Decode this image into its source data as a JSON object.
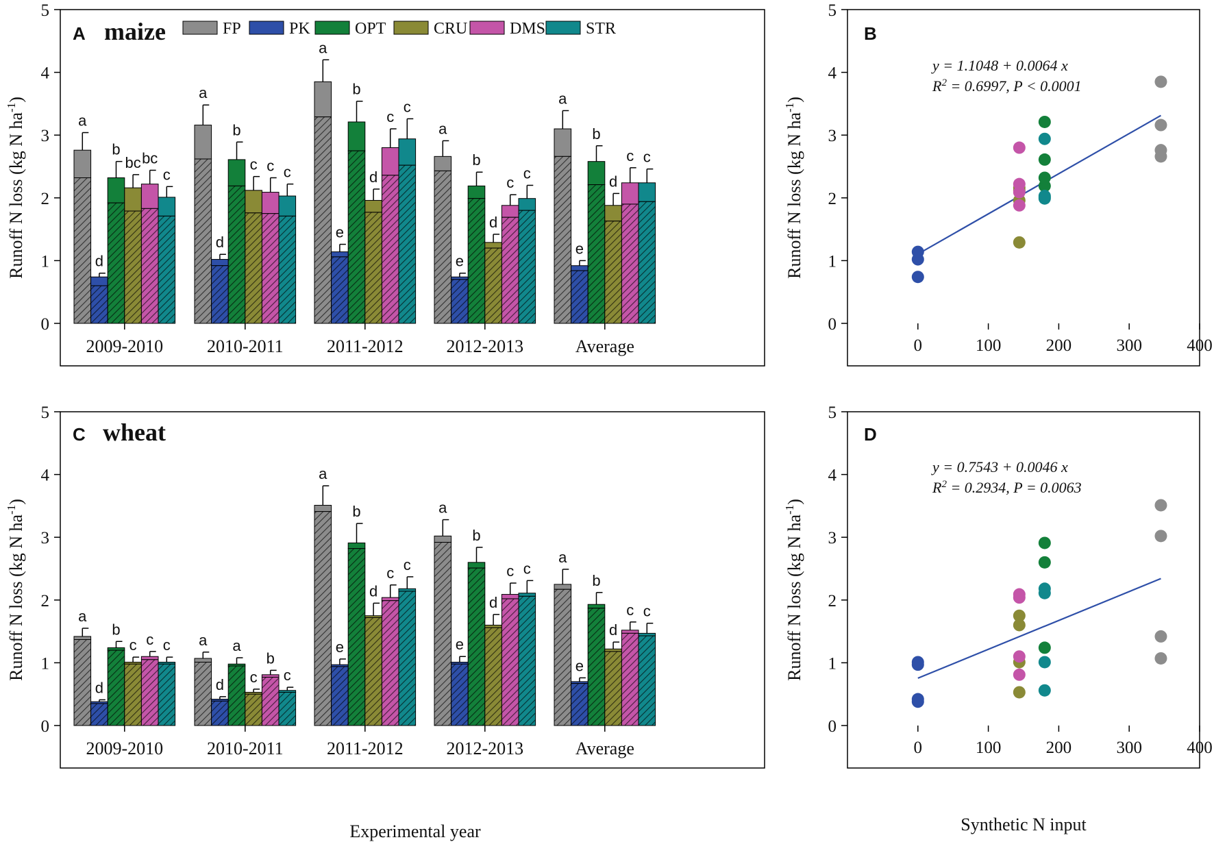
{
  "figure": {
    "x_title_bottom": "Experimental year",
    "scatter_x_title": "Synthetic N input",
    "y_title_base": "Runoff N loss (kg N ha",
    "y_title_sup": "-1",
    "y_title_close": ")"
  },
  "legend": [
    {
      "name": "FP",
      "color": "#8c8c8c"
    },
    {
      "name": "PK",
      "color": "#2e4fa8"
    },
    {
      "name": "OPT",
      "color": "#13803a"
    },
    {
      "name": "CRU",
      "color": "#8a8a36"
    },
    {
      "name": "DMS",
      "color": "#c455a8"
    },
    {
      "name": "STR",
      "color": "#11888c"
    }
  ],
  "chart_data": [
    {
      "panel": "A",
      "crop": "maize",
      "type": "bar",
      "title": "maize",
      "xlabel": "",
      "ylabel": "Runoff N loss (kg N ha-1)",
      "ylim": [
        0,
        5
      ],
      "yticks": [
        0,
        1,
        2,
        3,
        4,
        5
      ],
      "categories": [
        "2009-2010",
        "2010-2011",
        "2011-2012",
        "2012-2013",
        "Average"
      ],
      "series": [
        {
          "name": "FP",
          "total": [
            2.76,
            3.16,
            3.85,
            2.66,
            3.1
          ],
          "lower": [
            2.32,
            2.62,
            3.29,
            2.43,
            2.66
          ],
          "error": [
            0.28,
            0.32,
            0.35,
            0.25,
            0.29
          ],
          "labels": [
            "a",
            "a",
            "a",
            "a",
            "a"
          ]
        },
        {
          "name": "PK",
          "total": [
            0.74,
            1.02,
            1.14,
            0.74,
            0.92
          ],
          "lower": [
            0.6,
            0.92,
            1.06,
            0.7,
            0.84
          ],
          "error": [
            0.06,
            0.08,
            0.12,
            0.06,
            0.08
          ],
          "labels": [
            "d",
            "d",
            "e",
            "e",
            "e"
          ]
        },
        {
          "name": "OPT",
          "total": [
            2.32,
            2.61,
            3.21,
            2.19,
            2.58
          ],
          "lower": [
            1.92,
            2.19,
            2.75,
            1.99,
            2.21
          ],
          "error": [
            0.26,
            0.28,
            0.33,
            0.22,
            0.25
          ],
          "labels": [
            "b",
            "b",
            "b",
            "b",
            "b"
          ]
        },
        {
          "name": "CRU",
          "total": [
            2.16,
            2.12,
            1.96,
            1.29,
            1.88
          ],
          "lower": [
            1.79,
            1.76,
            1.77,
            1.2,
            1.63
          ],
          "error": [
            0.21,
            0.22,
            0.18,
            0.13,
            0.19
          ],
          "labels": [
            "bc",
            "c",
            "d",
            "d",
            "d"
          ]
        },
        {
          "name": "DMS",
          "total": [
            2.22,
            2.09,
            2.8,
            1.88,
            2.24
          ],
          "lower": [
            1.83,
            1.75,
            2.36,
            1.69,
            1.9
          ],
          "error": [
            0.22,
            0.23,
            0.3,
            0.17,
            0.24
          ],
          "labels": [
            "bc",
            "c",
            "c",
            "c",
            "c"
          ]
        },
        {
          "name": "STR",
          "total": [
            2.01,
            2.03,
            2.94,
            1.99,
            2.24
          ],
          "lower": [
            1.71,
            1.71,
            2.52,
            1.8,
            1.94
          ],
          "error": [
            0.17,
            0.19,
            0.32,
            0.21,
            0.22
          ],
          "labels": [
            "c",
            "c",
            "c",
            "c",
            "c"
          ]
        }
      ]
    },
    {
      "panel": "B",
      "type": "scatter",
      "title": "",
      "xlabel": "",
      "ylabel": "Runoff N loss (kg N ha-1)",
      "xlim": [
        -100,
        400
      ],
      "ylim": [
        0,
        5
      ],
      "xticks": [
        0,
        100,
        200,
        300,
        400
      ],
      "yticks": [
        0,
        1,
        2,
        3,
        4,
        5
      ],
      "equation": "y = 1.1048 + 0.0064 x",
      "stats_r2": "= 0.6997, P < 0.0001",
      "fit": {
        "intercept": 1.1048,
        "slope": 0.0064,
        "x_range": [
          0,
          345
        ]
      },
      "points": [
        {
          "group": "PK",
          "x": 0,
          "y": 0.74
        },
        {
          "group": "PK",
          "x": 0,
          "y": 1.02
        },
        {
          "group": "PK",
          "x": 0,
          "y": 1.14
        },
        {
          "group": "CRU",
          "x": 144,
          "y": 1.29
        },
        {
          "group": "CRU",
          "x": 144,
          "y": 1.96
        },
        {
          "group": "CRU",
          "x": 144,
          "y": 2.12
        },
        {
          "group": "CRU",
          "x": 144,
          "y": 2.16
        },
        {
          "group": "DMS",
          "x": 144,
          "y": 1.88
        },
        {
          "group": "DMS",
          "x": 144,
          "y": 2.09
        },
        {
          "group": "DMS",
          "x": 144,
          "y": 2.22
        },
        {
          "group": "DMS",
          "x": 144,
          "y": 2.8
        },
        {
          "group": "OPT",
          "x": 180,
          "y": 2.19
        },
        {
          "group": "OPT",
          "x": 180,
          "y": 2.32
        },
        {
          "group": "OPT",
          "x": 180,
          "y": 2.61
        },
        {
          "group": "OPT",
          "x": 180,
          "y": 3.21
        },
        {
          "group": "STR",
          "x": 180,
          "y": 1.99
        },
        {
          "group": "STR",
          "x": 180,
          "y": 2.01
        },
        {
          "group": "STR",
          "x": 180,
          "y": 2.03
        },
        {
          "group": "STR",
          "x": 180,
          "y": 2.94
        },
        {
          "group": "FP",
          "x": 345,
          "y": 2.66
        },
        {
          "group": "FP",
          "x": 345,
          "y": 2.76
        },
        {
          "group": "FP",
          "x": 345,
          "y": 3.16
        },
        {
          "group": "FP",
          "x": 345,
          "y": 3.85
        }
      ]
    },
    {
      "panel": "C",
      "crop": "wheat",
      "type": "bar",
      "title": "wheat",
      "xlabel": "Experimental year",
      "ylabel": "Runoff N loss (kg N ha-1)",
      "ylim": [
        0,
        5
      ],
      "yticks": [
        0,
        1,
        2,
        3,
        4,
        5
      ],
      "categories": [
        "2009-2010",
        "2010-2011",
        "2011-2012",
        "2012-2013",
        "Average"
      ],
      "series": [
        {
          "name": "FP",
          "total": [
            1.42,
            1.07,
            3.51,
            3.02,
            2.25
          ],
          "lower": [
            1.37,
            1.01,
            3.41,
            2.92,
            2.17
          ],
          "error": [
            0.13,
            0.1,
            0.31,
            0.26,
            0.24
          ],
          "labels": [
            "a",
            "a",
            "a",
            "a",
            "a"
          ]
        },
        {
          "name": "PK",
          "total": [
            0.38,
            0.42,
            0.97,
            1.01,
            0.7
          ],
          "lower": [
            0.35,
            0.39,
            0.94,
            0.98,
            0.67
          ],
          "error": [
            0.03,
            0.04,
            0.09,
            0.09,
            0.06
          ],
          "labels": [
            "d",
            "d",
            "e",
            "e",
            "e"
          ]
        },
        {
          "name": "OPT",
          "total": [
            1.24,
            0.98,
            2.91,
            2.6,
            1.93
          ],
          "lower": [
            1.2,
            0.95,
            2.82,
            2.51,
            1.87
          ],
          "error": [
            0.1,
            0.1,
            0.31,
            0.24,
            0.19
          ],
          "labels": [
            "b",
            "a",
            "b",
            "b",
            "b"
          ]
        },
        {
          "name": "CRU",
          "total": [
            1.01,
            0.53,
            1.75,
            1.6,
            1.22
          ],
          "lower": [
            0.98,
            0.5,
            1.72,
            1.56,
            1.18
          ],
          "error": [
            0.08,
            0.05,
            0.2,
            0.17,
            0.11
          ],
          "labels": [
            "c",
            "c",
            "d",
            "d",
            "d"
          ]
        },
        {
          "name": "DMS",
          "total": [
            1.1,
            0.81,
            2.04,
            2.09,
            1.52
          ],
          "lower": [
            1.05,
            0.77,
            1.99,
            2.02,
            1.47
          ],
          "error": [
            0.08,
            0.07,
            0.2,
            0.18,
            0.13
          ],
          "labels": [
            "c",
            "b",
            "c",
            "c",
            "c"
          ]
        },
        {
          "name": "STR",
          "total": [
            1.01,
            0.56,
            2.18,
            2.11,
            1.47
          ],
          "lower": [
            0.98,
            0.53,
            2.14,
            2.06,
            1.43
          ],
          "error": [
            0.08,
            0.05,
            0.19,
            0.2,
            0.16
          ],
          "labels": [
            "c",
            "c",
            "c",
            "c",
            "c"
          ]
        }
      ]
    },
    {
      "panel": "D",
      "type": "scatter",
      "title": "",
      "xlabel": "Synthetic N input",
      "ylabel": "Runoff N loss (kg N ha-1)",
      "xlim": [
        -100,
        400
      ],
      "ylim": [
        0,
        5
      ],
      "xticks": [
        0,
        100,
        200,
        300,
        400
      ],
      "yticks": [
        0,
        1,
        2,
        3,
        4,
        5
      ],
      "equation": "y = 0.7543 + 0.0046 x",
      "stats_r2": "= 0.2934, P = 0.0063",
      "fit": {
        "intercept": 0.7543,
        "slope": 0.0046,
        "x_range": [
          0,
          345
        ]
      },
      "points": [
        {
          "group": "PK",
          "x": 0,
          "y": 0.38
        },
        {
          "group": "PK",
          "x": 0,
          "y": 0.42
        },
        {
          "group": "PK",
          "x": 0,
          "y": 0.97
        },
        {
          "group": "PK",
          "x": 0,
          "y": 1.01
        },
        {
          "group": "CRU",
          "x": 144,
          "y": 0.53
        },
        {
          "group": "CRU",
          "x": 144,
          "y": 1.01
        },
        {
          "group": "CRU",
          "x": 144,
          "y": 1.6
        },
        {
          "group": "CRU",
          "x": 144,
          "y": 1.75
        },
        {
          "group": "DMS",
          "x": 144,
          "y": 0.81
        },
        {
          "group": "DMS",
          "x": 144,
          "y": 1.1
        },
        {
          "group": "DMS",
          "x": 144,
          "y": 2.04
        },
        {
          "group": "DMS",
          "x": 144,
          "y": 2.09
        },
        {
          "group": "OPT",
          "x": 180,
          "y": 1.24
        },
        {
          "group": "OPT",
          "x": 180,
          "y": 2.6
        },
        {
          "group": "OPT",
          "x": 180,
          "y": 2.91
        },
        {
          "group": "STR",
          "x": 180,
          "y": 0.56
        },
        {
          "group": "STR",
          "x": 180,
          "y": 1.01
        },
        {
          "group": "STR",
          "x": 180,
          "y": 2.11
        },
        {
          "group": "STR",
          "x": 180,
          "y": 2.18
        },
        {
          "group": "FP",
          "x": 345,
          "y": 1.07
        },
        {
          "group": "FP",
          "x": 345,
          "y": 1.42
        },
        {
          "group": "FP",
          "x": 345,
          "y": 3.02
        },
        {
          "group": "FP",
          "x": 345,
          "y": 3.51
        }
      ]
    }
  ]
}
